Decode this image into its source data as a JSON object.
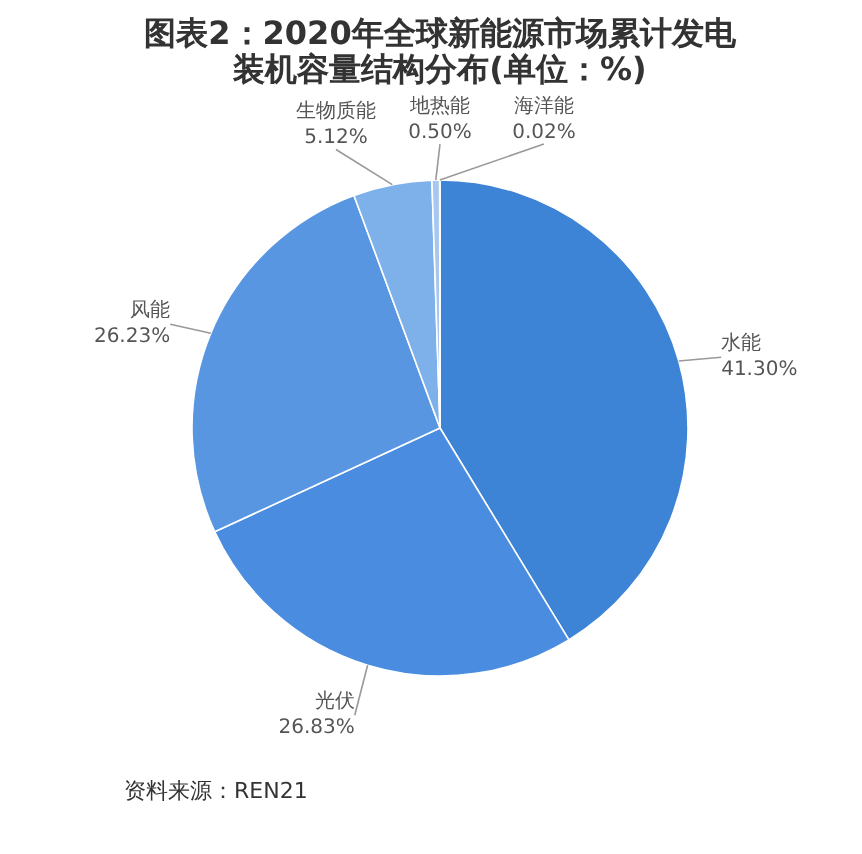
{
  "chart_data": {
    "type": "pie",
    "title": "图表2：2020年全球新能源市场累计发电装机容量结构分布(单位：%)",
    "categories": [
      "水能",
      "光伏",
      "风能",
      "生物质能",
      "地热能",
      "海洋能"
    ],
    "values": [
      41.3,
      26.83,
      26.23,
      5.12,
      0.5,
      0.02
    ],
    "colors": [
      "#3d83d6",
      "#4a8de0",
      "#5896e2",
      "#7eb0ea",
      "#a6c8f0",
      "#c4dbf5"
    ],
    "value_labels": [
      "41.30%",
      "26.83%",
      "26.23%",
      "5.12%",
      "0.50%",
      "0.02%"
    ],
    "annotations": [
      "资料来源：REN21"
    ]
  }
}
